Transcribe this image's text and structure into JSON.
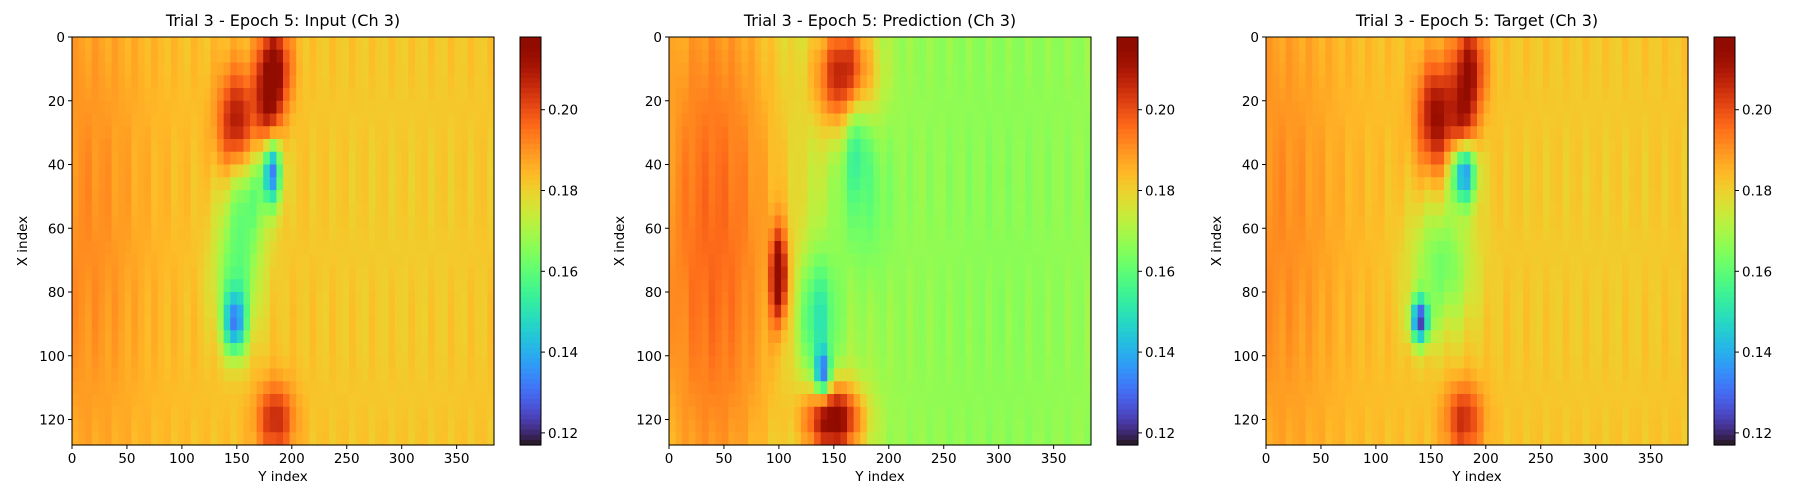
{
  "chart_data": [
    {
      "type": "heatmap",
      "title": "Trial 3 - Epoch 5: Input (Ch 3)",
      "xlabel": "Y index",
      "ylabel": "X index",
      "xlim": [
        0,
        384
      ],
      "ylim": [
        128,
        0
      ],
      "xticks": [
        "0",
        "50",
        "100",
        "150",
        "200",
        "250",
        "300",
        "350"
      ],
      "yticks": [
        "0",
        "20",
        "40",
        "60",
        "80",
        "100",
        "120"
      ],
      "colormap": "turbo",
      "vmin": 0.117,
      "vmax": 0.218,
      "colorbar_ticks": [
        "0.12",
        "0.14",
        "0.16",
        "0.18",
        "0.20"
      ],
      "background_value": 0.183,
      "features": [
        {
          "y": 60,
          "x": 10,
          "sy": 60,
          "sx": 40,
          "v": 0.191
        },
        {
          "y": 60,
          "x": 300,
          "sy": 60,
          "sx": 80,
          "v": 0.181
        },
        {
          "y": 10,
          "x": 185,
          "sy": 10,
          "sx": 10,
          "v": 0.212
        },
        {
          "y": 28,
          "x": 150,
          "sy": 12,
          "sx": 12,
          "v": 0.213
        },
        {
          "y": 22,
          "x": 178,
          "sy": 12,
          "sx": 8,
          "v": 0.205
        },
        {
          "y": 48,
          "x": 160,
          "sy": 12,
          "sx": 15,
          "v": 0.161
        },
        {
          "y": 42,
          "x": 182,
          "sy": 7,
          "sx": 6,
          "v": 0.136
        },
        {
          "y": 75,
          "x": 150,
          "sy": 14,
          "sx": 15,
          "v": 0.162
        },
        {
          "y": 90,
          "x": 148,
          "sy": 7,
          "sx": 7,
          "v": 0.142
        },
        {
          "y": 120,
          "x": 185,
          "sy": 8,
          "sx": 12,
          "v": 0.207
        }
      ]
    },
    {
      "type": "heatmap",
      "title": "Trial 3 - Epoch 5: Prediction (Ch 3)",
      "xlabel": "Y index",
      "ylabel": "X index",
      "xlim": [
        0,
        384
      ],
      "ylim": [
        128,
        0
      ],
      "xticks": [
        "0",
        "50",
        "100",
        "150",
        "200",
        "250",
        "300",
        "350"
      ],
      "yticks": [
        "0",
        "20",
        "40",
        "60",
        "80",
        "100",
        "120"
      ],
      "colormap": "turbo",
      "vmin": 0.117,
      "vmax": 0.218,
      "colorbar_ticks": [
        "0.12",
        "0.14",
        "0.16",
        "0.18",
        "0.20"
      ],
      "background_value": 0.168,
      "features": [
        {
          "y": 64,
          "x": 40,
          "sy": 90,
          "sx": 55,
          "v": 0.196
        },
        {
          "y": 64,
          "x": 300,
          "sy": 90,
          "sx": 60,
          "v": 0.166
        },
        {
          "y": 12,
          "x": 160,
          "sy": 12,
          "sx": 18,
          "v": 0.208
        },
        {
          "y": 30,
          "x": 170,
          "sy": 12,
          "sx": 8,
          "v": 0.152
        },
        {
          "y": 50,
          "x": 175,
          "sy": 18,
          "sx": 18,
          "v": 0.16
        },
        {
          "y": 88,
          "x": 135,
          "sy": 14,
          "sx": 12,
          "v": 0.145
        },
        {
          "y": 106,
          "x": 140,
          "sy": 5,
          "sx": 5,
          "v": 0.128
        },
        {
          "y": 120,
          "x": 150,
          "sy": 8,
          "sx": 18,
          "v": 0.216
        },
        {
          "y": 75,
          "x": 100,
          "sy": 10,
          "sx": 5,
          "v": 0.21
        }
      ]
    },
    {
      "type": "heatmap",
      "title": "Trial 3 - Epoch 5: Target (Ch 3)",
      "xlabel": "Y index",
      "ylabel": "X index",
      "xlim": [
        0,
        384
      ],
      "ylim": [
        128,
        0
      ],
      "xticks": [
        "0",
        "50",
        "100",
        "150",
        "200",
        "250",
        "300",
        "350"
      ],
      "yticks": [
        "0",
        "20",
        "40",
        "60",
        "80",
        "100",
        "120"
      ],
      "colormap": "turbo",
      "vmin": 0.117,
      "vmax": 0.218,
      "colorbar_ticks": [
        "0.12",
        "0.14",
        "0.16",
        "0.18",
        "0.20"
      ],
      "background_value": 0.183,
      "features": [
        {
          "y": 60,
          "x": 10,
          "sy": 60,
          "sx": 40,
          "v": 0.191
        },
        {
          "y": 60,
          "x": 300,
          "sy": 60,
          "sx": 80,
          "v": 0.181
        },
        {
          "y": 10,
          "x": 185,
          "sy": 10,
          "sx": 10,
          "v": 0.212
        },
        {
          "y": 25,
          "x": 155,
          "sy": 12,
          "sx": 12,
          "v": 0.214
        },
        {
          "y": 30,
          "x": 180,
          "sy": 10,
          "sx": 8,
          "v": 0.206
        },
        {
          "y": 42,
          "x": 180,
          "sy": 7,
          "sx": 8,
          "v": 0.128
        },
        {
          "y": 72,
          "x": 160,
          "sy": 15,
          "sx": 20,
          "v": 0.163
        },
        {
          "y": 89,
          "x": 140,
          "sy": 5,
          "sx": 6,
          "v": 0.13
        },
        {
          "y": 120,
          "x": 180,
          "sy": 8,
          "sx": 12,
          "v": 0.206
        }
      ]
    }
  ]
}
